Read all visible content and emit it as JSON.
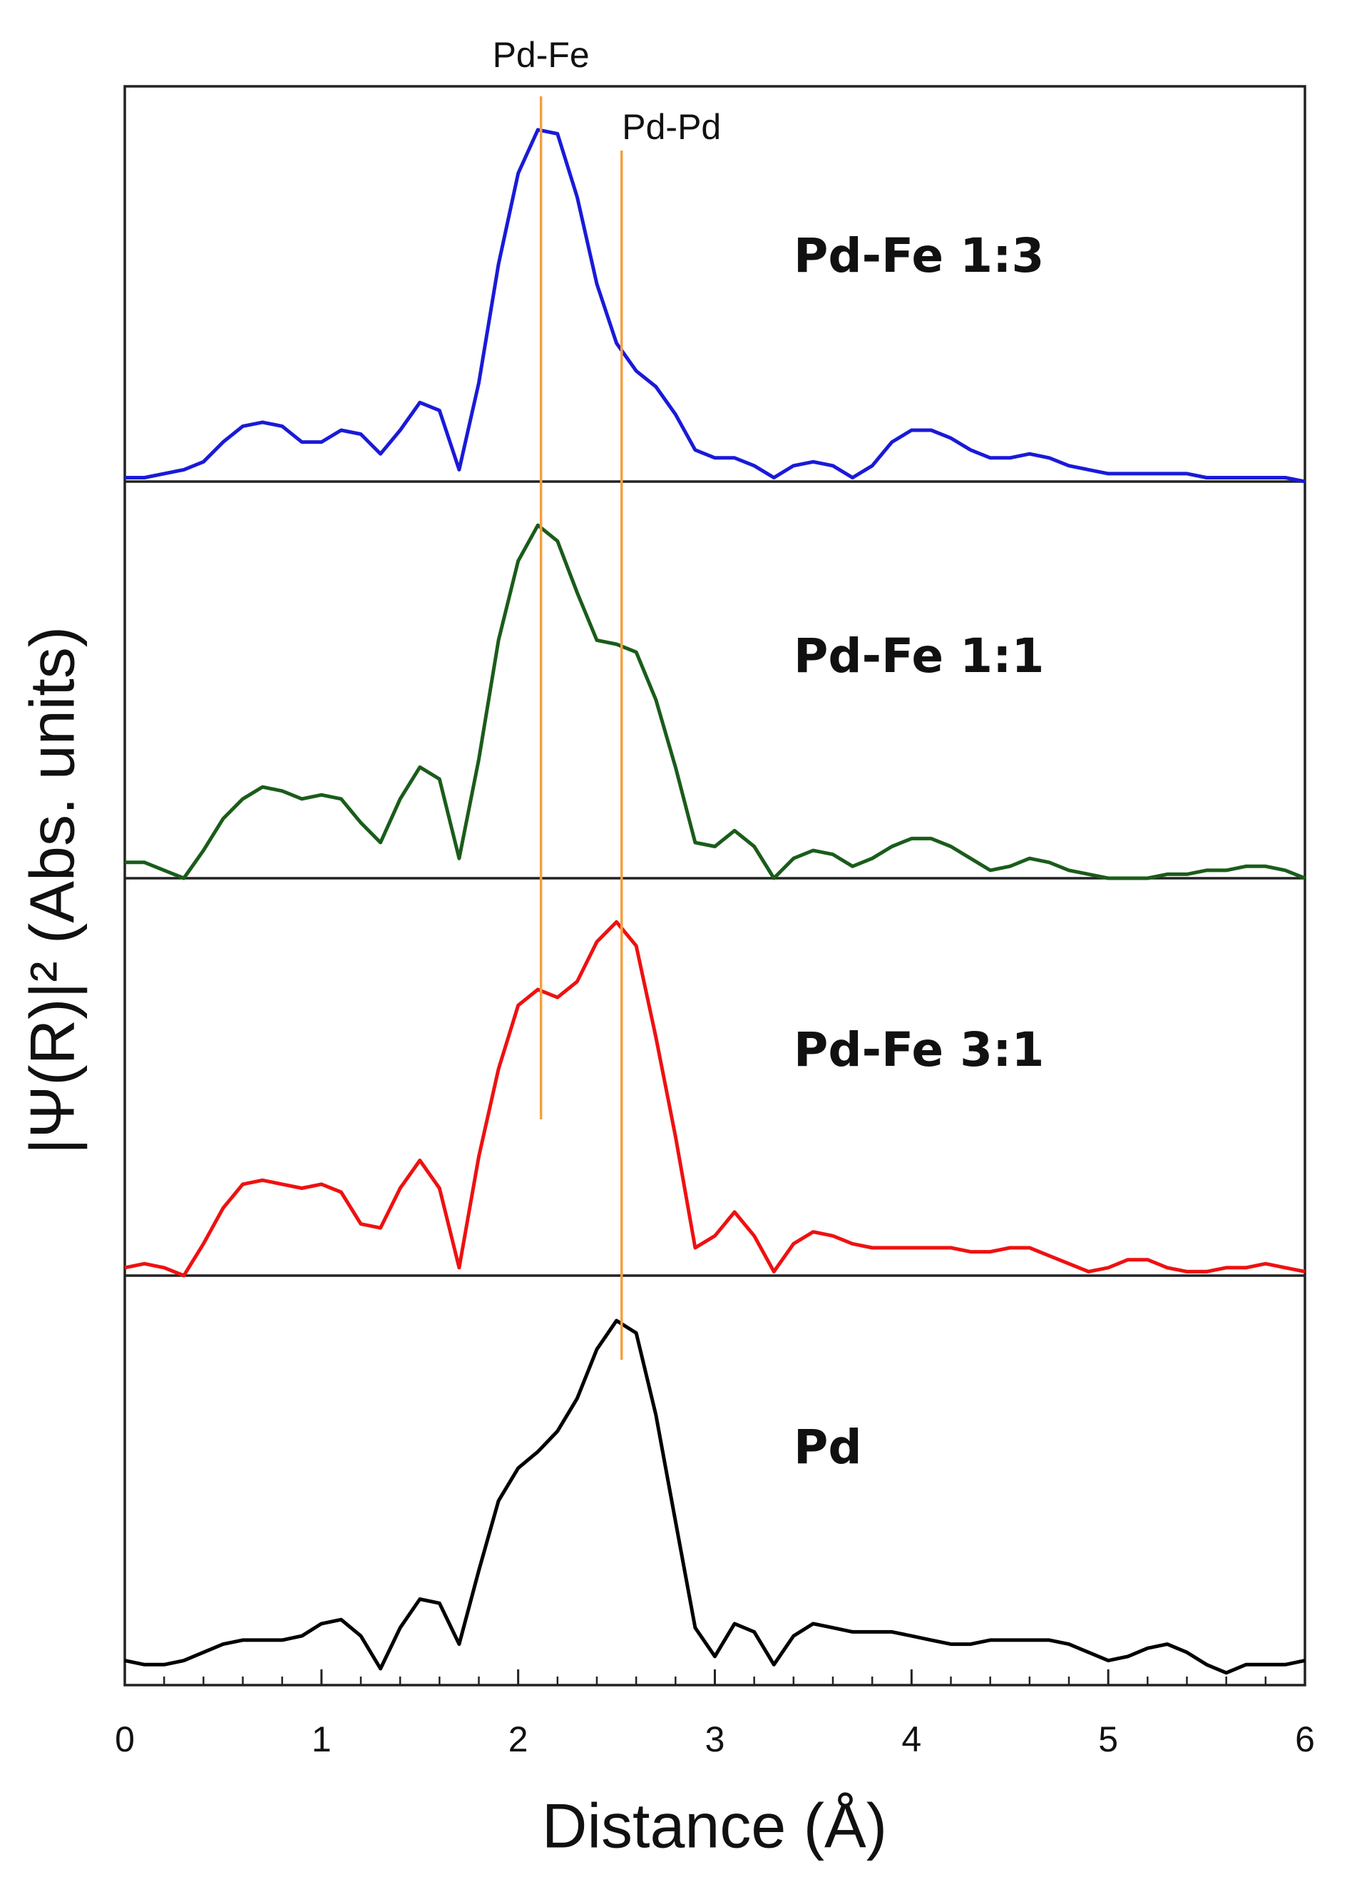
{
  "chart_data": {
    "type": "line",
    "xlabel": "Distance (Å)",
    "ylabel": "|Ψ(R)|² (Abs. units)",
    "xlim": [
      0,
      6
    ],
    "xticks": [
      0,
      1,
      2,
      3,
      4,
      5,
      6
    ],
    "xticks_minor": [
      0.2,
      0.4,
      0.6,
      0.8,
      1.2,
      1.4,
      1.6,
      1.8,
      2.2,
      2.4,
      2.6,
      2.8,
      3.2,
      3.4,
      3.6,
      3.8,
      4.2,
      4.4,
      4.6,
      4.8,
      5.2,
      5.4,
      5.6,
      5.8
    ],
    "ylim": [
      0,
      1
    ],
    "x": [
      0,
      0.1,
      0.2,
      0.3,
      0.4,
      0.5,
      0.6,
      0.7,
      0.8,
      0.9,
      1.0,
      1.1,
      1.2,
      1.3,
      1.4,
      1.5,
      1.6,
      1.7,
      1.8,
      1.9,
      2.0,
      2.1,
      2.2,
      2.3,
      2.4,
      2.5,
      2.6,
      2.7,
      2.8,
      2.9,
      3.0,
      3.1,
      3.2,
      3.3,
      3.4,
      3.5,
      3.6,
      3.7,
      3.8,
      3.9,
      4.0,
      4.1,
      4.2,
      4.3,
      4.4,
      4.5,
      4.6,
      4.7,
      4.8,
      4.9,
      5.0,
      5.1,
      5.2,
      5.3,
      5.4,
      5.5,
      5.6,
      5.7,
      5.8,
      5.9,
      6.0
    ],
    "series": [
      {
        "name": "Pd-Fe 1:3",
        "color": "#1a1ad8",
        "values": [
          0.01,
          0.01,
          0.02,
          0.03,
          0.05,
          0.1,
          0.14,
          0.15,
          0.14,
          0.1,
          0.1,
          0.13,
          0.12,
          0.07,
          0.13,
          0.2,
          0.18,
          0.03,
          0.25,
          0.55,
          0.78,
          0.89,
          0.88,
          0.72,
          0.5,
          0.35,
          0.28,
          0.24,
          0.17,
          0.08,
          0.06,
          0.06,
          0.04,
          0.01,
          0.04,
          0.05,
          0.04,
          0.01,
          0.04,
          0.1,
          0.13,
          0.13,
          0.11,
          0.08,
          0.06,
          0.06,
          0.07,
          0.06,
          0.04,
          0.03,
          0.02,
          0.02,
          0.02,
          0.02,
          0.02,
          0.01,
          0.01,
          0.01,
          0.01,
          0.01,
          0.0
        ]
      },
      {
        "name": "Pd-Fe 1:1",
        "color": "#1a5c1a",
        "values": [
          0.04,
          0.04,
          0.02,
          0.0,
          0.07,
          0.15,
          0.2,
          0.23,
          0.22,
          0.2,
          0.21,
          0.2,
          0.14,
          0.09,
          0.2,
          0.28,
          0.25,
          0.05,
          0.3,
          0.6,
          0.8,
          0.89,
          0.85,
          0.72,
          0.6,
          0.59,
          0.57,
          0.45,
          0.28,
          0.09,
          0.08,
          0.12,
          0.08,
          0.0,
          0.05,
          0.07,
          0.06,
          0.03,
          0.05,
          0.08,
          0.1,
          0.1,
          0.08,
          0.05,
          0.02,
          0.03,
          0.05,
          0.04,
          0.02,
          0.01,
          0.0,
          0.0,
          0.0,
          0.01,
          0.01,
          0.02,
          0.02,
          0.03,
          0.03,
          0.02,
          0.0
        ]
      },
      {
        "name": "Pd-Fe 3:1",
        "color": "#ee1111",
        "values": [
          0.02,
          0.03,
          0.02,
          0.0,
          0.08,
          0.17,
          0.23,
          0.24,
          0.23,
          0.22,
          0.23,
          0.21,
          0.13,
          0.12,
          0.22,
          0.29,
          0.22,
          0.02,
          0.3,
          0.52,
          0.68,
          0.72,
          0.7,
          0.74,
          0.84,
          0.89,
          0.83,
          0.6,
          0.35,
          0.07,
          0.1,
          0.16,
          0.1,
          0.01,
          0.08,
          0.11,
          0.1,
          0.08,
          0.07,
          0.07,
          0.07,
          0.07,
          0.07,
          0.06,
          0.06,
          0.07,
          0.07,
          0.05,
          0.03,
          0.01,
          0.02,
          0.04,
          0.04,
          0.02,
          0.01,
          0.01,
          0.02,
          0.02,
          0.03,
          0.02,
          0.01
        ]
      },
      {
        "name": "Pd",
        "color": "#000000",
        "values": [
          0.06,
          0.05,
          0.05,
          0.06,
          0.08,
          0.1,
          0.11,
          0.11,
          0.11,
          0.12,
          0.15,
          0.16,
          0.12,
          0.04,
          0.14,
          0.21,
          0.2,
          0.1,
          0.28,
          0.45,
          0.53,
          0.57,
          0.62,
          0.7,
          0.82,
          0.89,
          0.86,
          0.66,
          0.4,
          0.14,
          0.07,
          0.15,
          0.13,
          0.05,
          0.12,
          0.15,
          0.14,
          0.13,
          0.13,
          0.13,
          0.12,
          0.11,
          0.1,
          0.1,
          0.11,
          0.11,
          0.11,
          0.11,
          0.1,
          0.08,
          0.06,
          0.07,
          0.09,
          0.1,
          0.08,
          0.05,
          0.03,
          0.05,
          0.05,
          0.05,
          0.06
        ]
      }
    ],
    "annotations": [
      {
        "text": "Pd-Fe",
        "x": 2.116,
        "color": "#f5a040"
      },
      {
        "text": "Pd-Pd",
        "x": 2.526,
        "color": "#f5a040"
      }
    ]
  }
}
